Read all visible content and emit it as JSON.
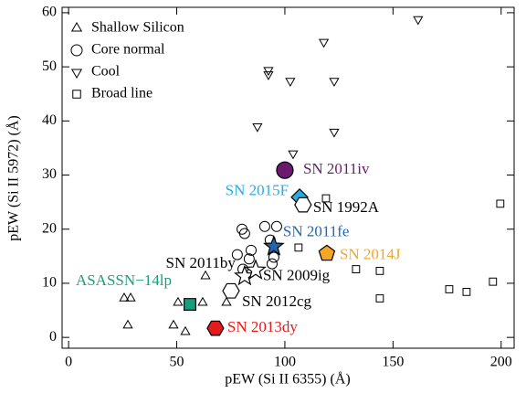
{
  "chart_data": {
    "type": "scatter",
    "x_label": "pEW (Si II 6355) (Å)",
    "y_label": "pEW (Si II 5972) (Å)",
    "xlim": [
      -3,
      206
    ],
    "ylim": [
      -2,
      61
    ],
    "xticks": [
      0,
      50,
      100,
      150,
      200
    ],
    "yticks": [
      0,
      10,
      20,
      30,
      40,
      50,
      60
    ],
    "legend": "upper left",
    "series": [
      {
        "name": "Shallow Silicon",
        "marker": "triangle",
        "color": "#000000",
        "x": [
          25.7,
          28.7,
          27.4,
          48.5,
          54.0,
          50.6,
          63.3,
          62.0,
          73.0
        ],
        "y": [
          7.2,
          7.2,
          2.2,
          2.2,
          1.0,
          6.4,
          11.3,
          6.4,
          6.4
        ]
      },
      {
        "name": "Core normal",
        "marker": "circle",
        "color": "#000000",
        "x": [
          80.2,
          81.4,
          78.0,
          83.5,
          90.7,
          96.2,
          93.2,
          94.9,
          94.1,
          80.6,
          76.0,
          84.4
        ],
        "y": [
          20.0,
          19.2,
          15.3,
          14.5,
          20.5,
          20.5,
          18.0,
          14.8,
          13.6,
          12.6,
          8.6,
          16.1
        ]
      },
      {
        "name": "Cool",
        "marker": "down-triangle",
        "color": "#000000",
        "x": [
          161.6,
          118.0,
          92.4,
          92.4,
          102.5,
          122.8,
          87.3,
          122.8,
          103.8
        ],
        "y": [
          58.8,
          54.6,
          49.4,
          48.6,
          47.4,
          47.4,
          39.0,
          38.0,
          34.0
        ]
      },
      {
        "name": "Broad line",
        "marker": "square",
        "color": "#000000",
        "x": [
          199.6,
          119.0,
          106.3,
          132.9,
          143.9,
          196.2,
          184.0,
          176.0,
          143.9
        ],
        "y": [
          24.7,
          25.7,
          16.6,
          12.6,
          12.3,
          10.3,
          8.4,
          8.9,
          7.2
        ]
      }
    ],
    "highlights": [
      {
        "name": "SN 2011iv",
        "marker": "circle",
        "color": "#6a1b6e",
        "filled": true,
        "x": 100.0,
        "y": 30.9
      },
      {
        "name": "SN 2015F",
        "marker": "diamond",
        "color": "#29abe2",
        "filled": true,
        "x": 106.8,
        "y": 25.9
      },
      {
        "name": "SN 1992A",
        "marker": "hexagon",
        "color": "#000000",
        "filled": false,
        "x": 108.4,
        "y": 24.5
      },
      {
        "name": "SN 2011fe",
        "marker": "star",
        "color": "#1f66b0",
        "filled": true,
        "x": 94.9,
        "y": 16.8
      },
      {
        "name": "SN 2014J",
        "marker": "pentagon",
        "color": "#f5a623",
        "filled": true,
        "x": 119.4,
        "y": 15.5
      },
      {
        "name": "SN 2011by",
        "marker": "star",
        "color": "#000000",
        "filled": false,
        "x": 81.4,
        "y": 11.3
      },
      {
        "name": "SN 2009ig",
        "marker": "star",
        "color": "#000000",
        "filled": false,
        "x": 86.5,
        "y": 12.4
      },
      {
        "name": "SN 2012cg",
        "marker": "hexagon",
        "color": "#000000",
        "filled": false,
        "x": 75.1,
        "y": 8.6
      },
      {
        "name": "ASASSN−14lp",
        "marker": "square",
        "color": "#1a9e7a",
        "filled": true,
        "x": 56.1,
        "y": 6.1
      },
      {
        "name": "SN 2013dy",
        "marker": "hexagon",
        "color": "#e41a1c",
        "filled": true,
        "x": 67.9,
        "y": 1.7
      }
    ]
  }
}
